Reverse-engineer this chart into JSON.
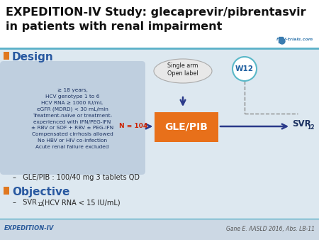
{
  "title_line1": "EXPEDITION-IV Study: glecaprevir/pibrentasvir",
  "title_line2": "in patients with renal impairment",
  "design_label": "Design",
  "objective_label": "Objective",
  "criteria_text": "≥ 18 years,\nHCV genotype 1 to 6\nHCV RNA ≥ 1000 IU/mL\neGFR (MDRD) < 30 mL/min\nTreatment-naïve or treatment-\nexperienced with IFN/PEG-IFN\n± RBV or SOF + RBV ± PEG-IFN\nCompensated cirrhosis allowed\nNo HBV or HIV co-infection\nAcute renal failure excluded",
  "single_arm_text": "Single arm\nOpen label",
  "w12_text": "W12",
  "n_label": "N = 104",
  "n_label_color": "#cc2200",
  "gle_pib_text": "GLE/PIB",
  "gle_pib_box_color": "#e8701a",
  "svr_text": "SVR",
  "svr_sub": "12",
  "arrow_color": "#2a3a8a",
  "dose_text": "–   GLE/PIB : 100/40 mg 3 tablets QD",
  "objective_svr": "–   SVR",
  "objective_sub": "12",
  "objective_suffix": " (HCV RNA < 15 IU/mL)",
  "footer_left": "EXPEDITION-IV",
  "footer_right": "Gane E. AASLD 2016, Abs. LB-11",
  "hcv_logo_text": "HCV-trials.com",
  "title_bg": "#ffffff",
  "body_bg": "#dde8f0",
  "criteria_box_color": "#bfcfdf",
  "section_label_color": "#2858a0",
  "bullet_color": "#e07820",
  "top_line_color": "#5ab0c8",
  "arrow_dark": "#2a3a8a",
  "footer_label_color": "#2a5a9a",
  "w12_circle_color": "#5ab8c8",
  "ellipse_fill": "#e8e8e8",
  "ellipse_edge": "#aaaaaa"
}
